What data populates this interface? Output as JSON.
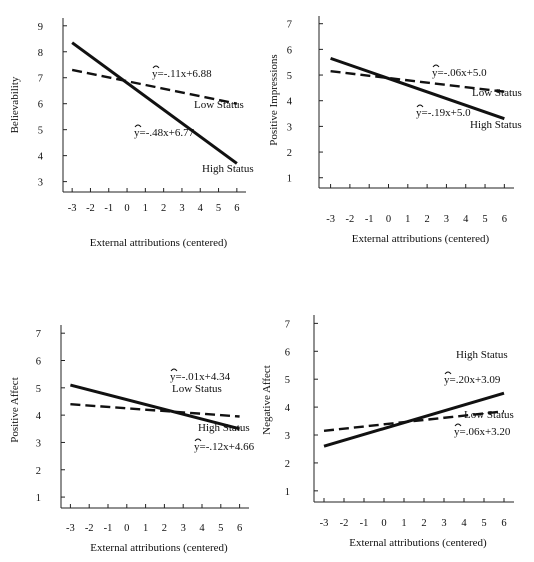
{
  "chart_data": [
    {
      "type": "line",
      "xlabel": "External attributions (centered)",
      "ylabel": "Believability",
      "xticks": [
        -3,
        -2,
        -1,
        0,
        1,
        2,
        3,
        4,
        5,
        6
      ],
      "yticks": [
        3,
        4,
        5,
        6,
        7,
        8,
        9
      ],
      "xlim": [
        -3.5,
        6.5
      ],
      "ylim": [
        2.6,
        9.3
      ],
      "series": [
        {
          "name": "High Status",
          "style": "solid",
          "x": [
            -3,
            6
          ],
          "y": [
            8.35,
            3.7
          ],
          "equation": "ŷ=-.48x+6.77"
        },
        {
          "name": "Low Status",
          "style": "dashed",
          "x": [
            -3,
            6
          ],
          "y": [
            7.3,
            6.0
          ],
          "equation": "ŷ=-.11x+6.88"
        }
      ]
    },
    {
      "type": "line",
      "xlabel": "External attributions (centered)",
      "ylabel": "Positive Impressions",
      "xticks": [
        -3,
        -2,
        -1,
        0,
        1,
        2,
        3,
        4,
        5,
        6
      ],
      "yticks": [
        1,
        2,
        3,
        4,
        5,
        6,
        7
      ],
      "xlim": [
        -3.6,
        6.5
      ],
      "ylim": [
        0.6,
        7.3
      ],
      "series": [
        {
          "name": "High Status",
          "style": "solid",
          "x": [
            -3,
            6
          ],
          "y": [
            5.65,
            3.3
          ],
          "equation": "ŷ=-.19x+5.0"
        },
        {
          "name": "Low Status",
          "style": "dashed",
          "x": [
            -3,
            6
          ],
          "y": [
            5.15,
            4.35
          ],
          "equation": "ŷ=-.06x+5.0"
        }
      ]
    },
    {
      "type": "line",
      "xlabel": "External attributions (centered)",
      "ylabel": "Positive Affect",
      "xticks": [
        -3,
        -2,
        -1,
        0,
        1,
        2,
        3,
        4,
        5,
        6
      ],
      "yticks": [
        1,
        2,
        3,
        4,
        5,
        6,
        7
      ],
      "xlim": [
        -3.5,
        6.5
      ],
      "ylim": [
        0.6,
        7.3
      ],
      "series": [
        {
          "name": "High Status",
          "style": "solid",
          "x": [
            -3,
            6
          ],
          "y": [
            5.1,
            3.5
          ],
          "equation": "ŷ=-.12x+4.66"
        },
        {
          "name": "Low Status",
          "style": "dashed",
          "x": [
            -3,
            6
          ],
          "y": [
            4.4,
            3.95
          ],
          "equation": "ŷ=-.01x+4.34"
        }
      ]
    },
    {
      "type": "line",
      "xlabel": "External attributions (centered)",
      "ylabel": "Negative Affect",
      "xticks": [
        -3,
        -2,
        -1,
        0,
        1,
        2,
        3,
        4,
        5,
        6
      ],
      "yticks": [
        1,
        2,
        3,
        4,
        5,
        6,
        7
      ],
      "xlim": [
        -3.5,
        6.5
      ],
      "ylim": [
        0.6,
        7.3
      ],
      "series": [
        {
          "name": "High Status",
          "style": "solid",
          "x": [
            -3,
            6
          ],
          "y": [
            2.6,
            4.5
          ],
          "equation": "ŷ=.20x+3.09"
        },
        {
          "name": "Low Status",
          "style": "dashed",
          "x": [
            -3,
            6
          ],
          "y": [
            3.15,
            3.85
          ],
          "equation": "ŷ=.06x+3.20"
        }
      ]
    }
  ]
}
